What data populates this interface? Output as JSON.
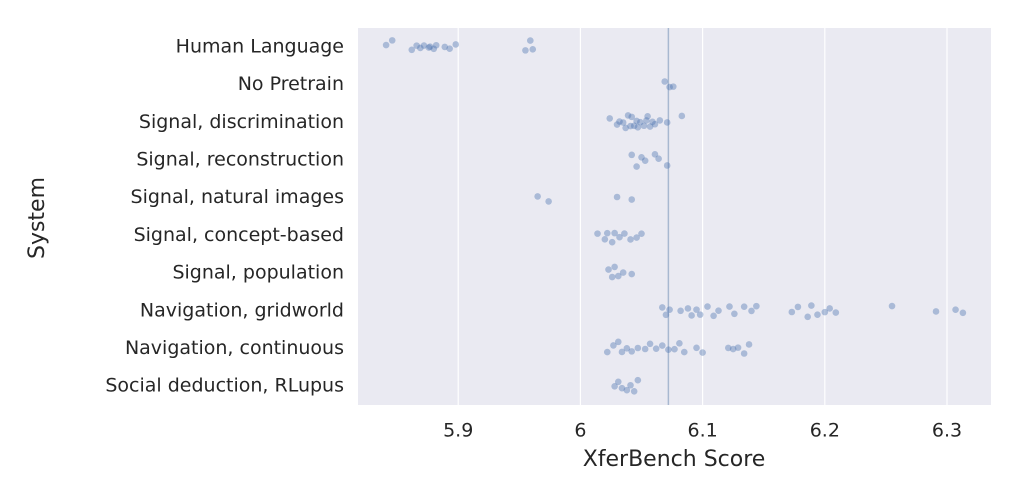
{
  "chart_data": {
    "type": "strip",
    "xlabel": "XferBench Score",
    "ylabel": "System",
    "color": "#4c72b0",
    "xlim": [
      5.818,
      6.336
    ],
    "xticks": [
      5.9,
      6.0,
      6.1,
      6.2,
      6.3
    ],
    "grid": true,
    "vline": 6.072,
    "categories": [
      "Human Language",
      "No Pretrain",
      "Signal, discrimination",
      "Signal, reconstruction",
      "Signal, natural images",
      "Signal, concept-based",
      "Signal, population",
      "Navigation, gridworld",
      "Navigation, continuous",
      "Social deduction, RLupus"
    ],
    "values": [
      [
        5.841,
        5.846,
        5.862,
        5.866,
        5.869,
        5.872,
        5.876,
        5.877,
        5.88,
        5.882,
        5.889,
        5.893,
        5.898,
        5.955,
        5.959,
        5.961
      ],
      [
        6.069,
        6.073,
        6.076
      ],
      [
        6.024,
        6.03,
        6.032,
        6.035,
        6.037,
        6.039,
        6.041,
        6.042,
        6.044,
        6.046,
        6.047,
        6.049,
        6.052,
        6.054,
        6.055,
        6.057,
        6.059,
        6.061,
        6.065,
        6.071,
        6.083
      ],
      [
        6.042,
        6.046,
        6.05,
        6.053,
        6.061,
        6.064,
        6.071
      ],
      [
        5.965,
        5.974,
        6.03,
        6.042
      ],
      [
        6.014,
        6.02,
        6.022,
        6.026,
        6.028,
        6.032,
        6.036,
        6.041,
        6.046,
        6.05
      ],
      [
        6.023,
        6.026,
        6.028,
        6.031,
        6.035,
        6.042
      ],
      [
        6.067,
        6.07,
        6.073,
        6.082,
        6.088,
        6.091,
        6.095,
        6.098,
        6.104,
        6.109,
        6.113,
        6.122,
        6.126,
        6.134,
        6.14,
        6.144,
        6.173,
        6.178,
        6.186,
        6.189,
        6.194,
        6.2,
        6.204,
        6.209,
        6.255,
        6.291,
        6.307,
        6.313
      ],
      [
        6.022,
        6.027,
        6.031,
        6.034,
        6.038,
        6.042,
        6.047,
        6.053,
        6.057,
        6.062,
        6.067,
        6.072,
        6.077,
        6.081,
        6.085,
        6.095,
        6.1,
        6.121,
        6.125,
        6.129,
        6.134,
        6.138
      ],
      [
        6.028,
        6.031,
        6.034,
        6.038,
        6.041,
        6.044,
        6.047
      ]
    ]
  }
}
